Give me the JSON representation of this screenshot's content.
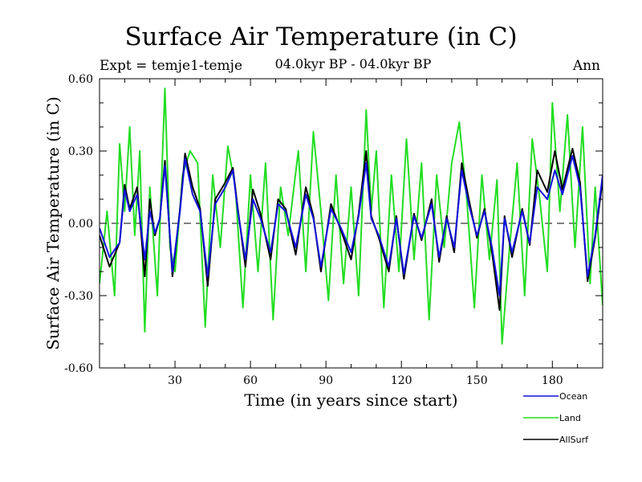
{
  "chart_data": {
    "type": "line",
    "title": "Surface Air Temperature (in C)",
    "subtitle_left": "Expt = temje1-temje",
    "subtitle_center": "04.0kyr BP - 04.0kyr BP",
    "subtitle_right": "Ann",
    "xlabel": "Time (in years since start)",
    "ylabel": "Surface Air Temperature (in C)",
    "xlim": [
      0,
      200
    ],
    "ylim": [
      -0.6,
      0.6
    ],
    "xticks": [
      30,
      60,
      90,
      120,
      150,
      180
    ],
    "yticks": [
      -0.6,
      -0.3,
      0.0,
      0.3,
      0.6
    ],
    "ytick_labels": [
      "-0.60",
      "-0.30",
      "0.00",
      "0.30",
      "0.60"
    ],
    "zero_line": "dashed",
    "legend_position": "bottom-right",
    "series": [
      {
        "name": "Ocean",
        "color": "#1010e0",
        "x": [
          0,
          4,
          8,
          10,
          12,
          15,
          18,
          20,
          22,
          24,
          26,
          29,
          32,
          34,
          37,
          40,
          43,
          46,
          50,
          53,
          55,
          58,
          61,
          64,
          68,
          71,
          74,
          78,
          82,
          85,
          88,
          92,
          96,
          100,
          103,
          106,
          108,
          111,
          115,
          118,
          121,
          125,
          128,
          132,
          135,
          138,
          141,
          144,
          147,
          150,
          153,
          156,
          159,
          161,
          164,
          168,
          171,
          174,
          178,
          181,
          184,
          188,
          191,
          194,
          197,
          200
        ],
        "values": [
          -0.02,
          -0.14,
          -0.08,
          0.14,
          0.05,
          0.12,
          -0.15,
          0.05,
          -0.04,
          0.02,
          0.24,
          -0.2,
          0.05,
          0.27,
          0.12,
          0.05,
          -0.22,
          0.08,
          0.15,
          0.22,
          0.05,
          -0.15,
          0.1,
          0.02,
          -0.12,
          0.08,
          0.05,
          -0.1,
          0.12,
          0.02,
          -0.18,
          0.06,
          -0.02,
          -0.12,
          0.03,
          0.25,
          0.02,
          -0.05,
          -0.18,
          0.02,
          -0.21,
          0.03,
          -0.06,
          0.08,
          -0.14,
          0.02,
          -0.1,
          0.22,
          0.07,
          -0.05,
          0.05,
          -0.1,
          -0.3,
          0.02,
          -0.12,
          0.05,
          -0.08,
          0.15,
          0.1,
          0.22,
          0.12,
          0.28,
          0.15,
          -0.22,
          -0.05,
          0.2
        ]
      },
      {
        "name": "Land",
        "color": "#22dd22",
        "x": [
          0,
          3,
          6,
          8,
          10,
          12,
          14,
          16,
          18,
          20,
          23,
          26,
          28,
          30,
          33,
          36,
          39,
          42,
          45,
          48,
          51,
          54,
          57,
          60,
          63,
          66,
          69,
          72,
          75,
          79,
          82,
          85,
          88,
          91,
          94,
          97,
          100,
          103,
          106,
          108,
          110,
          113,
          116,
          119,
          122,
          125,
          128,
          131,
          134,
          137,
          140,
          143,
          146,
          149,
          152,
          155,
          158,
          160,
          163,
          166,
          169,
          172,
          175,
          178,
          180,
          183,
          186,
          189,
          192,
          195,
          197,
          200
        ],
        "values": [
          -0.25,
          0.05,
          -0.3,
          0.33,
          0.05,
          0.4,
          -0.05,
          0.3,
          -0.45,
          0.15,
          -0.3,
          0.56,
          -0.1,
          -0.2,
          0.2,
          0.3,
          0.25,
          -0.43,
          0.2,
          -0.1,
          0.32,
          0.15,
          -0.35,
          0.2,
          -0.2,
          0.25,
          -0.4,
          0.15,
          -0.05,
          0.3,
          -0.2,
          0.38,
          0.05,
          -0.32,
          0.2,
          -0.25,
          0.15,
          -0.3,
          0.47,
          0.05,
          0.3,
          -0.35,
          0.2,
          -0.2,
          0.35,
          -0.15,
          0.25,
          -0.4,
          0.2,
          -0.1,
          0.25,
          0.42,
          0.1,
          -0.35,
          0.2,
          -0.15,
          0.18,
          -0.5,
          -0.1,
          0.25,
          -0.3,
          0.35,
          0.1,
          -0.2,
          0.5,
          0.05,
          0.45,
          -0.1,
          0.4,
          -0.25,
          0.15,
          -0.34
        ]
      },
      {
        "name": "AllSurf",
        "color": "#000000",
        "x": [
          0,
          4,
          8,
          10,
          12,
          15,
          18,
          20,
          22,
          24,
          26,
          29,
          32,
          34,
          37,
          40,
          43,
          46,
          50,
          53,
          55,
          58,
          61,
          64,
          68,
          71,
          74,
          78,
          82,
          85,
          88,
          92,
          96,
          100,
          103,
          106,
          108,
          111,
          115,
          118,
          121,
          125,
          128,
          132,
          135,
          138,
          141,
          144,
          147,
          150,
          153,
          156,
          159,
          161,
          164,
          168,
          171,
          174,
          178,
          181,
          184,
          188,
          191,
          194,
          197,
          200
        ],
        "values": [
          -0.05,
          -0.18,
          -0.08,
          0.16,
          0.06,
          0.15,
          -0.22,
          0.1,
          -0.05,
          0.02,
          0.26,
          -0.22,
          0.06,
          0.29,
          0.15,
          0.06,
          -0.26,
          0.1,
          0.17,
          0.23,
          0.06,
          -0.18,
          0.14,
          0.04,
          -0.15,
          0.1,
          0.06,
          -0.13,
          0.15,
          0.03,
          -0.2,
          0.08,
          -0.03,
          -0.15,
          0.04,
          0.3,
          0.03,
          -0.06,
          -0.2,
          0.03,
          -0.23,
          0.04,
          -0.07,
          0.1,
          -0.16,
          0.03,
          -0.12,
          0.25,
          0.09,
          -0.06,
          0.06,
          -0.12,
          -0.36,
          0.03,
          -0.14,
          0.06,
          -0.09,
          0.22,
          0.13,
          0.3,
          0.14,
          0.31,
          0.17,
          -0.24,
          -0.06,
          0.18
        ]
      }
    ]
  }
}
